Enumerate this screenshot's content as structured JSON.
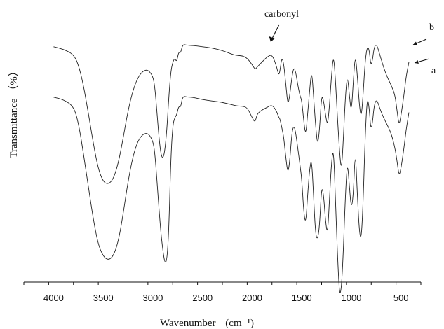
{
  "chart_data": {
    "type": "line",
    "title": "",
    "xlabel": "Wavenumber",
    "xlabel_unit": "(cm⁻¹)",
    "ylabel": "Transmittance （%）",
    "x_reversed": true,
    "xlim": [
      4300,
      300
    ],
    "ylim": [
      0,
      100
    ],
    "y_tick_labels": false,
    "grid": false,
    "x_ticks": [
      4000,
      3500,
      3000,
      2500,
      2000,
      1500,
      1000,
      500
    ],
    "x_minor_step": 250,
    "annotations": [
      {
        "text": "carbonyl",
        "target_series": "b",
        "target_x": 1730
      }
    ],
    "series": [
      {
        "name": "b",
        "x": [
          4000,
          3900,
          3800,
          3750,
          3700,
          3650,
          3600,
          3550,
          3500,
          3450,
          3400,
          3350,
          3300,
          3250,
          3200,
          3150,
          3100,
          3050,
          3000,
          2980,
          2960,
          2940,
          2920,
          2900,
          2880,
          2860,
          2840,
          2820,
          2800,
          2780,
          2760,
          2740,
          2720,
          2700,
          2650,
          2600,
          2500,
          2400,
          2300,
          2200,
          2150,
          2100,
          2050,
          2000,
          1970,
          1950,
          1900,
          1850,
          1800,
          1760,
          1740,
          1730,
          1720,
          1700,
          1680,
          1660,
          1640,
          1620,
          1600,
          1580,
          1560,
          1540,
          1520,
          1500,
          1480,
          1460,
          1440,
          1420,
          1400,
          1380,
          1360,
          1340,
          1320,
          1300,
          1280,
          1260,
          1240,
          1220,
          1200,
          1180,
          1160,
          1140,
          1120,
          1100,
          1080,
          1060,
          1040,
          1020,
          1000,
          980,
          960,
          940,
          920,
          900,
          880,
          860,
          840,
          820,
          800,
          760,
          700,
          650,
          600,
          560,
          540,
          520,
          500,
          470,
          450,
          420
        ],
        "y": [
          91,
          90,
          88,
          84,
          76,
          65,
          53,
          43,
          38,
          37,
          39,
          45,
          55,
          66,
          74,
          79,
          81.5,
          82,
          79.5,
          75,
          66,
          56,
          49,
          47,
          50,
          58,
          71,
          81,
          85,
          86.5,
          85,
          89,
          88.5,
          92,
          91.5,
          91.5,
          91,
          90.5,
          89.5,
          88,
          87.5,
          87.5,
          86.5,
          84,
          82,
          83,
          85,
          87,
          88,
          84,
          81,
          80,
          81.5,
          87,
          84,
          76,
          68,
          72,
          79,
          83,
          81,
          76,
          72,
          70,
          62,
          56,
          65,
          74,
          82,
          71,
          60,
          52,
          59,
          72,
          70,
          64,
          60,
          68,
          80,
          88,
          78,
          63,
          50,
          42,
          55,
          72,
          80,
          72,
          65,
          78,
          88,
          80,
          68,
          63,
          73,
          86,
          91,
          90,
          82,
          94,
          86,
          80,
          76,
          72,
          66,
          60,
          64,
          72,
          79,
          85
        ]
      },
      {
        "name": "a",
        "x": [
          4000,
          3900,
          3800,
          3750,
          3700,
          3650,
          3600,
          3550,
          3500,
          3450,
          3400,
          3350,
          3300,
          3250,
          3200,
          3150,
          3100,
          3050,
          3000,
          2980,
          2960,
          2940,
          2920,
          2900,
          2880,
          2860,
          2840,
          2820,
          2800,
          2780,
          2760,
          2740,
          2720,
          2700,
          2650,
          2600,
          2500,
          2400,
          2300,
          2200,
          2150,
          2100,
          2050,
          2000,
          1970,
          1950,
          1900,
          1850,
          1800,
          1760,
          1740,
          1730,
          1720,
          1700,
          1680,
          1660,
          1640,
          1620,
          1600,
          1580,
          1560,
          1540,
          1520,
          1500,
          1480,
          1460,
          1440,
          1420,
          1400,
          1380,
          1360,
          1340,
          1320,
          1300,
          1280,
          1260,
          1240,
          1220,
          1200,
          1180,
          1160,
          1140,
          1120,
          1100,
          1080,
          1060,
          1040,
          1020,
          1000,
          980,
          960,
          940,
          920,
          900,
          880,
          860,
          840,
          820,
          800,
          760,
          700,
          650,
          600,
          560,
          540,
          520,
          500,
          470,
          450,
          420
        ],
        "y": [
          80,
          79,
          76.5,
          70,
          58,
          45,
          32,
          22,
          17.5,
          16,
          17.5,
          23,
          34,
          47,
          57,
          63,
          65.5,
          66,
          63,
          58,
          48,
          37,
          27,
          20,
          15,
          15.5,
          27,
          55,
          69,
          72,
          73,
          76.5,
          76,
          80.5,
          80,
          80,
          79,
          78.5,
          78,
          77,
          76.5,
          76.5,
          76,
          72,
          70,
          73.5,
          75,
          76,
          77,
          75,
          73,
          72,
          71.5,
          68,
          64,
          56,
          50,
          55,
          66,
          69,
          66,
          60,
          54,
          48,
          35,
          30,
          42,
          52,
          56,
          40,
          26,
          24,
          30,
          45,
          42,
          31,
          26,
          40,
          55,
          60,
          40,
          18,
          2,
          5,
          20,
          42,
          55,
          45,
          36,
          42,
          60,
          42,
          27,
          24,
          40,
          66,
          80,
          76,
          65,
          81,
          74,
          70,
          66,
          60,
          55,
          49,
          52,
          60,
          67,
          74
        ]
      }
    ]
  }
}
